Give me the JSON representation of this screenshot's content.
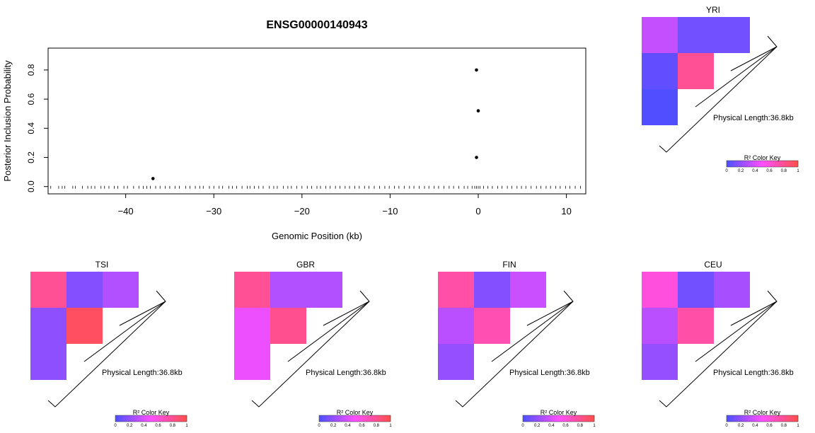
{
  "chart_data": [
    {
      "type": "scatter",
      "title": "ENSG00000140943",
      "xlabel": "Genomic Position (kb)",
      "ylabel": "Posterior Inclusion Probability",
      "xlim": [
        -48.8,
        12.2
      ],
      "ylim": [
        -0.05,
        0.95
      ],
      "xticks": [
        -40,
        -30,
        -20,
        -10,
        0,
        10
      ],
      "yticks": [
        0.0,
        0.2,
        0.4,
        0.6,
        0.8
      ],
      "xtick_labels": [
        "−40",
        "−30",
        "−20",
        "−10",
        "0",
        "10"
      ],
      "ytick_labels": [
        "0.0",
        "0.2",
        "0.4",
        "0.6",
        "0.8"
      ],
      "points": [
        {
          "x": -36.9,
          "y": 0.055
        },
        {
          "x": -0.2,
          "y": 0.8
        },
        {
          "x": 0.0,
          "y": 0.52
        },
        {
          "x": -0.2,
          "y": 0.2
        }
      ],
      "rug_positions": [
        -48.5,
        -47.6,
        -47.2,
        -46.9,
        -46.0,
        -45.7,
        -44.9,
        -44.3,
        -43.9,
        -43.5,
        -42.8,
        -42.4,
        -41.9,
        -41.3,
        -40.9,
        -40.2,
        -39.8,
        -39.1,
        -38.5,
        -38.0,
        -37.6,
        -37.2,
        -36.6,
        -36.1,
        -35.5,
        -35.0,
        -34.4,
        -33.9,
        -33.2,
        -32.7,
        -32.1,
        -31.6,
        -31.2,
        -30.5,
        -30.0,
        -29.4,
        -29.0,
        -28.3,
        -27.9,
        -27.4,
        -26.8,
        -26.2,
        -25.9,
        -25.4,
        -24.9,
        -24.4,
        -23.7,
        -23.2,
        -22.8,
        -22.1,
        -21.6,
        -21.2,
        -20.6,
        -20.0,
        -19.4,
        -18.9,
        -18.3,
        -17.9,
        -17.3,
        -16.8,
        -16.2,
        -15.7,
        -15.1,
        -14.6,
        -14.0,
        -13.5,
        -12.9,
        -12.4,
        -11.8,
        -11.2,
        -10.6,
        -10.1,
        -9.5,
        -9.0,
        -8.4,
        -7.8,
        -7.3,
        -6.7,
        -6.1,
        -5.6,
        -5.0,
        -4.5,
        -3.9,
        -3.3,
        -2.8,
        -2.2,
        -1.6,
        -1.2,
        -0.7,
        -0.4,
        -0.2,
        0.0,
        0.2,
        0.6,
        1.1,
        1.6,
        2.2,
        2.7,
        3.3,
        3.8,
        4.4,
        4.9,
        5.4,
        6.0,
        6.6,
        7.1,
        7.7,
        8.2,
        8.8,
        9.3,
        9.9,
        10.4,
        11.0,
        11.6
      ],
      "point_color": "#000000"
    },
    {
      "type": "heatmap",
      "title": "YRI",
      "annotation": "Physical Length:36.8kb",
      "matrix": [
        [
          0.33,
          0.1,
          0.1
        ],
        [
          null,
          0.05,
          0.8
        ],
        [
          null,
          null,
          0.0
        ]
      ]
    },
    {
      "type": "heatmap",
      "title": "TSI",
      "annotation": "Physical Length:36.8kb",
      "matrix": [
        [
          0.8,
          0.15,
          0.28
        ],
        [
          null,
          0.18,
          0.95
        ],
        [
          null,
          null,
          0.18
        ]
      ]
    },
    {
      "type": "heatmap",
      "title": "GBR",
      "annotation": "Physical Length:36.8kb",
      "matrix": [
        [
          0.8,
          0.28,
          0.28
        ],
        [
          null,
          0.45,
          0.82
        ],
        [
          null,
          null,
          0.45
        ]
      ]
    },
    {
      "type": "heatmap",
      "title": "FIN",
      "annotation": "Physical Length:36.8kb",
      "matrix": [
        [
          0.75,
          0.15,
          0.35
        ],
        [
          null,
          0.3,
          0.72
        ],
        [
          null,
          null,
          0.2
        ]
      ]
    },
    {
      "type": "heatmap",
      "title": "CEU",
      "annotation": "Physical Length:36.8kb",
      "matrix": [
        [
          0.6,
          0.1,
          0.25
        ],
        [
          null,
          0.3,
          0.75
        ],
        [
          null,
          null,
          0.2
        ]
      ]
    }
  ],
  "color_key": {
    "title": "R² Color Key",
    "ticks": [
      "0",
      "0.2",
      "0.4",
      "0.6",
      "0.8",
      "1"
    ],
    "colors": [
      "#4f4fff",
      "#ff4fff",
      "#ff4f4f"
    ]
  }
}
